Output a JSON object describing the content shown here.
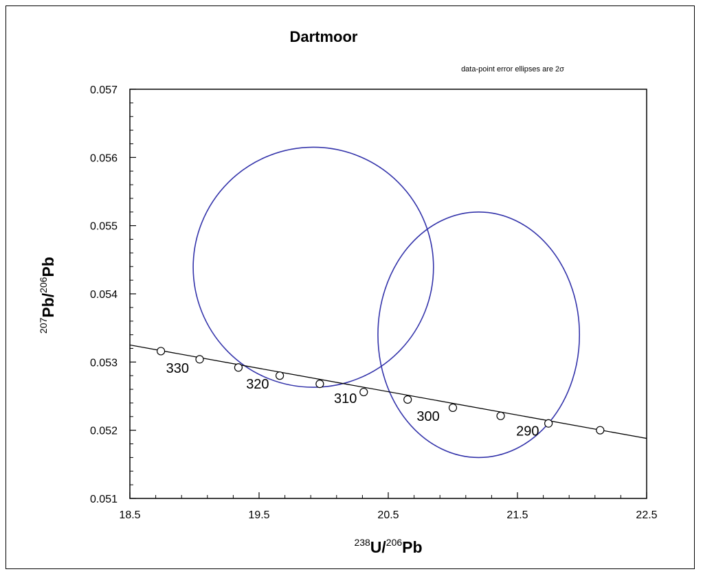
{
  "chart_data": {
    "type": "scatter",
    "title": "Dartmoor",
    "annotation": "data-point error ellipses are 2σ",
    "xlabel": {
      "sup1": "238",
      "main1": "U/",
      "sup2": "206",
      "main2": "Pb"
    },
    "ylabel": {
      "sup1": "207",
      "main1": "Pb/",
      "sup2": "206",
      "main2": "Pb"
    },
    "xlim": [
      18.5,
      22.5
    ],
    "ylim": [
      0.051,
      0.057
    ],
    "x_ticks": [
      "18.5",
      "19.5",
      "20.5",
      "21.5",
      "22.5"
    ],
    "y_ticks": [
      "0.051",
      "0.052",
      "0.053",
      "0.054",
      "0.055",
      "0.056",
      "0.057"
    ],
    "concordia_line": {
      "x": [
        18.5,
        22.5
      ],
      "y": [
        0.05325,
        0.05188
      ]
    },
    "concordia_markers": [
      {
        "x": 18.74,
        "y": 0.05316
      },
      {
        "x": 19.04,
        "y": 0.05304
      },
      {
        "x": 19.34,
        "y": 0.05292
      },
      {
        "x": 19.66,
        "y": 0.0528
      },
      {
        "x": 19.97,
        "y": 0.05268
      },
      {
        "x": 20.31,
        "y": 0.05256
      },
      {
        "x": 20.65,
        "y": 0.05245
      },
      {
        "x": 21.0,
        "y": 0.05233
      },
      {
        "x": 21.37,
        "y": 0.05221
      },
      {
        "x": 21.74,
        "y": 0.0521
      },
      {
        "x": 22.14,
        "y": 0.052
      }
    ],
    "age_labels": [
      {
        "text": "330",
        "x": 18.78,
        "y": 0.05284
      },
      {
        "text": "320",
        "x": 19.4,
        "y": 0.05261
      },
      {
        "text": "310",
        "x": 20.08,
        "y": 0.0524
      },
      {
        "text": "300",
        "x": 20.72,
        "y": 0.05214
      },
      {
        "text": "290",
        "x": 21.49,
        "y": 0.05192
      }
    ],
    "ellipses": [
      {
        "cx": 19.92,
        "cy": 0.05439,
        "rx": 0.93,
        "ry": 0.00176
      },
      {
        "cx": 21.2,
        "cy": 0.0534,
        "rx": 0.78,
        "ry": 0.0018
      }
    ],
    "colors": {
      "ellipse": "#3333aa",
      "line": "#000000",
      "marker_fill": "#ffffff"
    }
  }
}
